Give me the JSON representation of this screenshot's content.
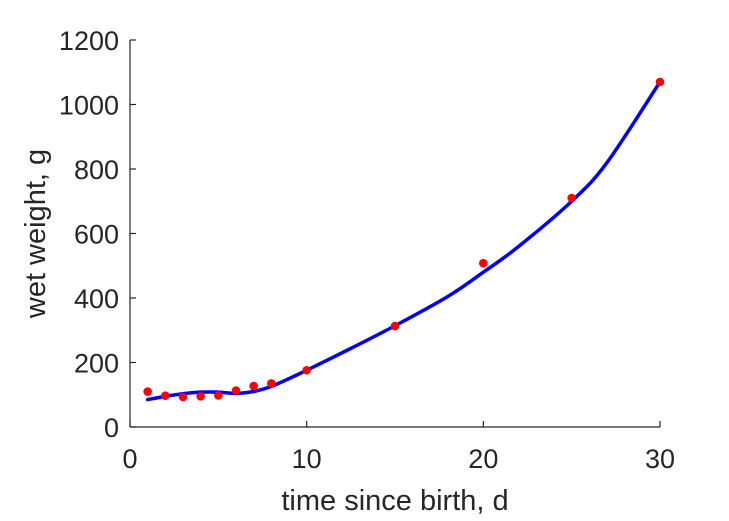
{
  "chart_data": {
    "type": "scatter",
    "xlabel": "time since birth, d",
    "ylabel": "wet weight, g",
    "xlim": [
      0,
      30
    ],
    "ylim": [
      0,
      1200
    ],
    "xticks": [
      0,
      10,
      20,
      30
    ],
    "yticks": [
      0,
      200,
      400,
      600,
      800,
      1000,
      1200
    ],
    "grid": false,
    "legend": "none",
    "series": [
      {
        "kind": "points",
        "color": "#ff0000",
        "x": [
          1,
          2,
          3,
          4,
          5,
          6,
          7,
          8,
          10,
          15,
          20,
          25,
          30
        ],
        "y": [
          110,
          97,
          93,
          95,
          98,
          113,
          127,
          135,
          176,
          313,
          508,
          710,
          1070
        ]
      },
      {
        "kind": "line",
        "color": "#0000ff",
        "x": [
          1,
          2,
          3,
          4,
          5,
          6,
          7,
          8,
          9,
          10,
          12,
          15,
          18,
          20,
          22,
          25,
          27,
          30
        ],
        "y": [
          85,
          95,
          103,
          108,
          108,
          104,
          110,
          126,
          150,
          176,
          230,
          314,
          405,
          480,
          560,
          700,
          820,
          1070
        ]
      }
    ]
  }
}
